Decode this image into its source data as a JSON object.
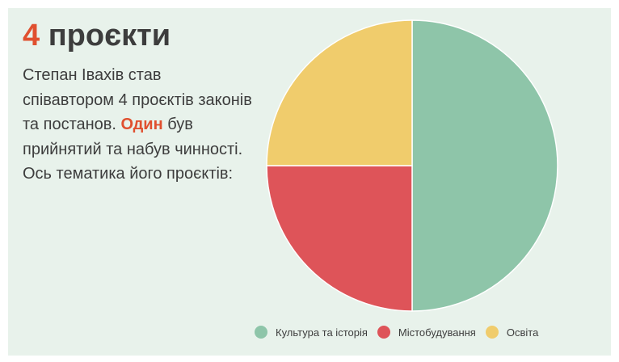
{
  "header": {
    "count": "4",
    "title_word": "проєкти"
  },
  "description": {
    "part1": "Степан Івахів став співавтором 4 проєктів законів та постанов. ",
    "highlight": "Один",
    "part2": " був прийнятий та набув чинності. Ось тематика його проєктів:"
  },
  "colors": {
    "accent": "#e0502f",
    "text": "#3d3d3d",
    "card_bg": "#e8f2eb"
  },
  "chart_data": {
    "type": "pie",
    "title": "",
    "categories": [
      "Культура та історія",
      "Містобудування",
      "Освіта"
    ],
    "values": [
      2,
      1,
      1
    ],
    "colors": [
      "#8ec5a9",
      "#de5459",
      "#f0cc6c"
    ],
    "start_angle_deg": 0,
    "direction": "clockwise",
    "legend_position": "bottom"
  }
}
